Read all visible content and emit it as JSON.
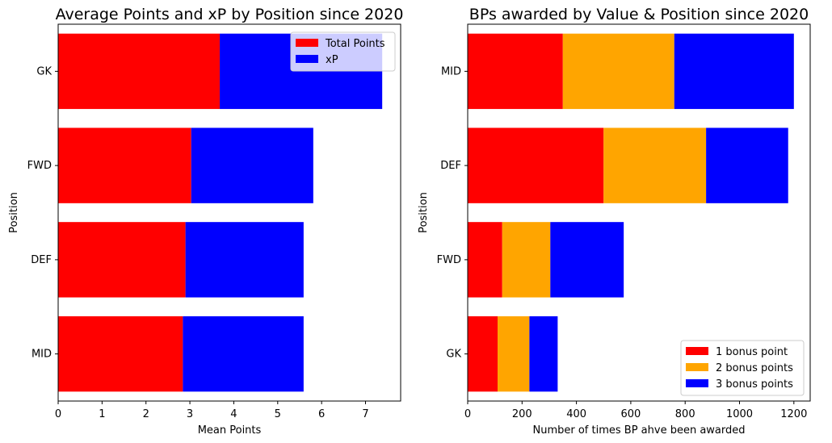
{
  "chart_data": [
    {
      "type": "bar",
      "orientation": "horizontal",
      "stacked": true,
      "title": "Average Points and xP by Position since 2020",
      "xlabel": "Mean Points",
      "ylabel": "Position",
      "categories": [
        "GK",
        "FWD",
        "DEF",
        "MID"
      ],
      "series": [
        {
          "name": "Total Points",
          "color": "#ff0000",
          "values": [
            3.68,
            3.03,
            2.9,
            2.84
          ]
        },
        {
          "name": "xP",
          "color": "#0000ff",
          "values": [
            3.7,
            2.78,
            2.69,
            2.75
          ]
        }
      ],
      "xlim": [
        0,
        7.8
      ],
      "xticks": [
        0,
        1,
        2,
        3,
        4,
        5,
        6,
        7
      ],
      "grid": false,
      "legend": "top-right"
    },
    {
      "type": "bar",
      "orientation": "horizontal",
      "stacked": true,
      "title": "BPs awarded by Value & Position since 2020",
      "xlabel": "Number of times BP ahve been awarded",
      "ylabel": "Position",
      "categories": [
        "MID",
        "DEF",
        "FWD",
        "GK"
      ],
      "series": [
        {
          "name": "1 bonus point",
          "color": "#ff0000",
          "values": [
            350,
            500,
            127,
            110
          ]
        },
        {
          "name": "2 bonus points",
          "color": "#ffa500",
          "values": [
            410,
            377,
            177,
            117
          ]
        },
        {
          "name": "3 bonus points",
          "color": "#0000ff",
          "values": [
            440,
            302,
            270,
            104
          ]
        }
      ],
      "xlim": [
        0,
        1260
      ],
      "xticks": [
        0,
        200,
        400,
        600,
        800,
        1000,
        1200
      ],
      "grid": false,
      "legend": "bottom-right"
    }
  ]
}
